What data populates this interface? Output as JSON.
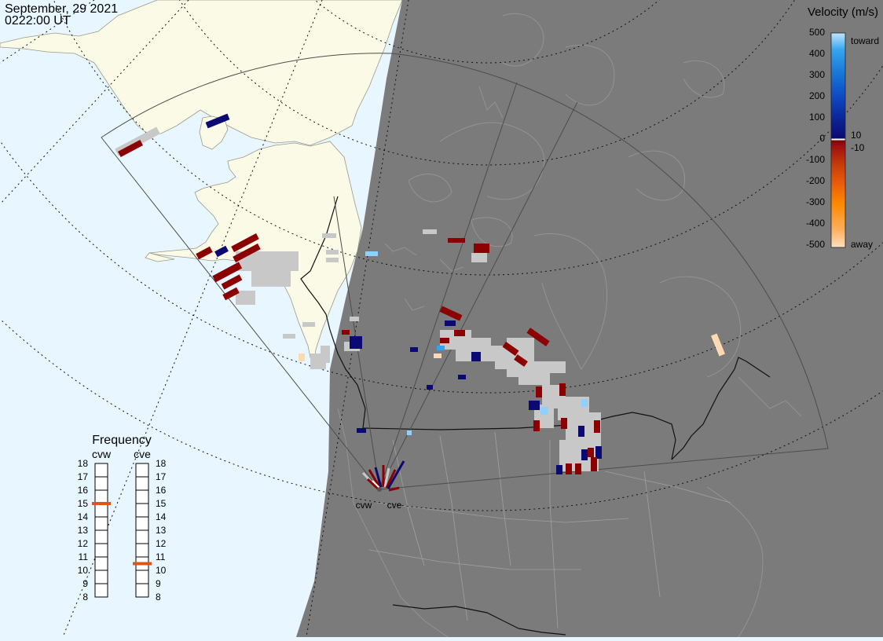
{
  "header": {
    "date": "September, 29 2021",
    "time": "0222:00 UT"
  },
  "colors": {
    "ocean": "#e8f6ff",
    "land_day": "#fafae6",
    "night": "#7b7b7b",
    "night_coast": "#939393",
    "ground_scatter": "#c8c8c8",
    "fov_outline": "#4d4d4d",
    "grid_dotted": "#222222",
    "selected_freq": "#e0541b"
  },
  "velocity_scale": {
    "title": "Velocity (m/s)",
    "tick_labels": [
      "500",
      "400",
      "300",
      "200",
      "100",
      "0",
      "-100",
      "-200",
      "-300",
      "-400",
      "-500"
    ],
    "small_labels": [
      "10",
      "-10"
    ],
    "toward_label": "toward",
    "away_label": "away",
    "stops": [
      "#ffe0c0",
      "#ffb060",
      "#ff8a00",
      "#e95c0a",
      "#c53a0b",
      "#a01010",
      "#7a0606",
      "#ffffff",
      "#0a0a72",
      "#0b2ba0",
      "#1050c8",
      "#1a7ad8",
      "#35a4ee",
      "#bfe6ff"
    ]
  },
  "frequency_panel": {
    "title": "Frequency",
    "left_label": "cvw",
    "right_label": "cve",
    "ticks": [
      "18",
      "17",
      "16",
      "15",
      "14",
      "13",
      "12",
      "11",
      "10",
      "9",
      "8"
    ],
    "cvw_selected_mhz": 15,
    "cve_selected_mhz": 10.5
  },
  "radars": [
    {
      "label": "cvw"
    },
    {
      "label": "cve"
    }
  ]
}
